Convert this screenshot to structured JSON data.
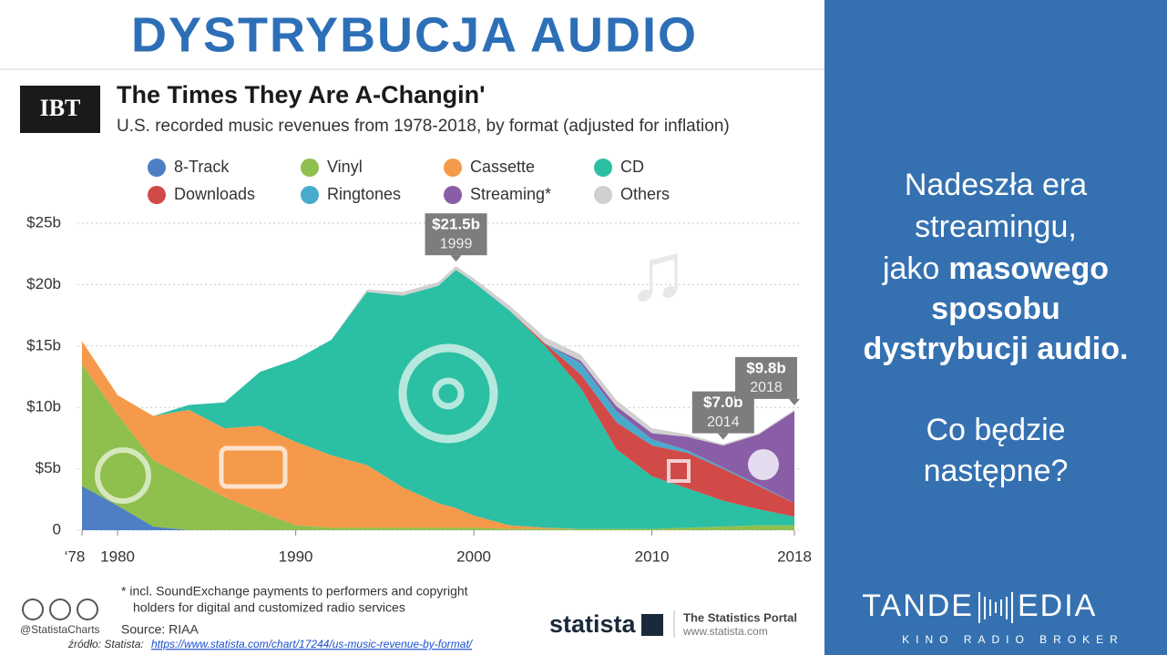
{
  "slide": {
    "title": "DYSTRYBUCJA AUDIO",
    "logo": "IBT",
    "footnote": [
      "* incl. SoundExchange payments to performers and copyright",
      "holders for digital and customized radio services"
    ],
    "source": "Source: RIAA",
    "handle": "@StatistaCharts",
    "brand": "statista",
    "portal": "The Statistics Portal",
    "portal_url": "www.statista.com",
    "credit": "źródło: Statista:",
    "link": "https://www.statista.com/chart/17244/us-music-revenue-by-format/",
    "panel": {
      "line1": "Nadeszła era",
      "line2": "streamingu,",
      "line3": "jako",
      "line3_bold": "masowego",
      "line4": "sposobu",
      "line5": "dystrybucji audio.",
      "line6": "Co będzie",
      "line7": "następne?"
    },
    "company": {
      "left": "TANDE",
      "right": "EDIA",
      "tagline": "KINO RADIO BROKER"
    }
  },
  "chart_data": {
    "type": "stacked_area",
    "title": "The Times They Are A-Changin'",
    "subtitle": "U.S. recorded music revenues from 1978-2018, by format (adjusted for inflation)",
    "x": [
      1978,
      1980,
      1982,
      1984,
      1986,
      1988,
      1990,
      1992,
      1994,
      1996,
      1998,
      1999,
      2000,
      2002,
      2004,
      2006,
      2008,
      2010,
      2012,
      2014,
      2016,
      2018
    ],
    "series": [
      {
        "name": "8-Track",
        "color": "#4e7fc4",
        "values": [
          3.6,
          2.0,
          0.3,
          0,
          0,
          0,
          0,
          0,
          0,
          0,
          0,
          0,
          0,
          0,
          0,
          0,
          0,
          0,
          0,
          0,
          0,
          0
        ]
      },
      {
        "name": "Vinyl",
        "color": "#8fbf4d",
        "values": [
          9.9,
          7.4,
          5.4,
          4.2,
          2.7,
          1.5,
          0.4,
          0.2,
          0.2,
          0.2,
          0.2,
          0.2,
          0.2,
          0.1,
          0.1,
          0.1,
          0.1,
          0.1,
          0.2,
          0.3,
          0.4,
          0.4
        ]
      },
      {
        "name": "Cassette",
        "color": "#f59a4a",
        "values": [
          1.9,
          1.6,
          3.6,
          5.6,
          5.6,
          7.0,
          6.8,
          5.9,
          5.1,
          3.3,
          2.0,
          1.6,
          1.0,
          0.3,
          0.1,
          0,
          0,
          0,
          0,
          0,
          0,
          0
        ]
      },
      {
        "name": "CD",
        "color": "#2bbfa4",
        "values": [
          0,
          0,
          0,
          0.4,
          2.1,
          4.4,
          6.7,
          9.4,
          14.1,
          15.6,
          17.7,
          19.4,
          19.0,
          17.5,
          14.8,
          11.5,
          6.5,
          4.3,
          3.2,
          2.1,
          1.3,
          0.7
        ]
      },
      {
        "name": "Downloads",
        "color": "#d14a48",
        "values": [
          0,
          0,
          0,
          0,
          0,
          0,
          0,
          0,
          0,
          0,
          0,
          0,
          0,
          0,
          0.2,
          1.1,
          2.2,
          2.5,
          2.9,
          2.6,
          1.9,
          1.1
        ]
      },
      {
        "name": "Ringtones",
        "color": "#4aaacb",
        "values": [
          0,
          0,
          0,
          0,
          0,
          0,
          0,
          0,
          0,
          0,
          0,
          0,
          0,
          0,
          0,
          0.9,
          0.9,
          0.5,
          0.2,
          0.1,
          0.1,
          0
        ]
      },
      {
        "name": "Streaming*",
        "color": "#8a5ea6",
        "values": [
          0,
          0,
          0,
          0,
          0,
          0,
          0,
          0,
          0,
          0,
          0,
          0,
          0,
          0,
          0,
          0.2,
          0.4,
          0.5,
          1.1,
          1.8,
          4.1,
          7.5
        ]
      },
      {
        "name": "Others",
        "color": "#d0d0d0",
        "values": [
          0,
          0,
          0,
          0,
          0,
          0,
          0,
          0,
          0.2,
          0.3,
          0.3,
          0.3,
          0.3,
          0.4,
          0.5,
          0.5,
          0.5,
          0.4,
          0.2,
          0.1,
          0.1,
          0.1
        ]
      }
    ],
    "xlim": [
      1978,
      2018
    ],
    "xticks": [
      {
        "value": 1978,
        "label": "‘78"
      },
      1980,
      1990,
      2000,
      2010,
      2018
    ],
    "ylim": [
      0,
      25
    ],
    "yticks": [
      0,
      {
        "value": 5,
        "label": "$5b"
      },
      {
        "value": 10,
        "label": "$10b"
      },
      {
        "value": 15,
        "label": "$15b"
      },
      {
        "value": 20,
        "label": "$20b"
      },
      {
        "value": 25,
        "label": "$25b"
      }
    ],
    "grid": true,
    "annotations": [
      {
        "x": 1999,
        "value": 21.5,
        "label": "$21.5b"
      },
      {
        "x": 2014,
        "value": 7.0,
        "label": "$7.0b"
      },
      {
        "x": 2018,
        "value": 9.8,
        "label": "$9.8b"
      }
    ]
  }
}
